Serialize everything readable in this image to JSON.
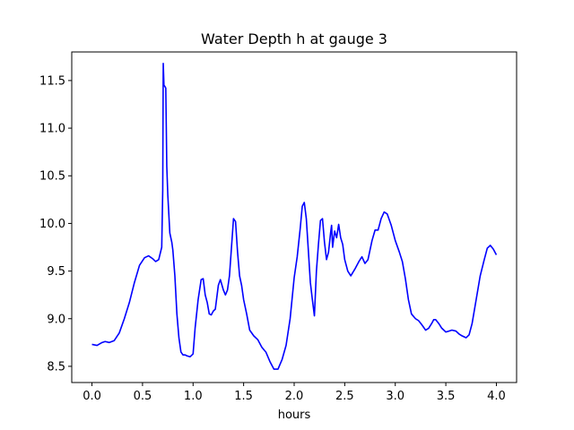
{
  "chart_data": {
    "type": "line",
    "title": "Water Depth h at gauge 3",
    "xlabel": "hours",
    "ylabel": "",
    "xlim": [
      -0.2,
      4.2
    ],
    "ylim": [
      8.33,
      11.8
    ],
    "xticks": [
      0.0,
      0.5,
      1.0,
      1.5,
      2.0,
      2.5,
      3.0,
      3.5,
      4.0
    ],
    "xtick_labels": [
      "0.0",
      "0.5",
      "1.0",
      "1.5",
      "2.0",
      "2.5",
      "3.0",
      "3.5",
      "4.0"
    ],
    "yticks": [
      8.5,
      9.0,
      9.5,
      10.0,
      10.5,
      11.0,
      11.5
    ],
    "ytick_labels": [
      "8.5",
      "9.0",
      "9.5",
      "10.0",
      "10.5",
      "11.0",
      "11.5"
    ],
    "grid": false,
    "series": [
      {
        "color": "#0000ff",
        "x": [
          0.0,
          0.05,
          0.1,
          0.13,
          0.17,
          0.22,
          0.27,
          0.32,
          0.37,
          0.42,
          0.47,
          0.52,
          0.56,
          0.6,
          0.63,
          0.66,
          0.69,
          0.7,
          0.705,
          0.712,
          0.72,
          0.73,
          0.74,
          0.75,
          0.77,
          0.79,
          0.8,
          0.82,
          0.84,
          0.86,
          0.88,
          0.9,
          0.92,
          0.94,
          0.97,
          1.0,
          1.02,
          1.05,
          1.08,
          1.1,
          1.12,
          1.14,
          1.16,
          1.18,
          1.2,
          1.22,
          1.25,
          1.27,
          1.3,
          1.32,
          1.34,
          1.36,
          1.38,
          1.4,
          1.42,
          1.44,
          1.46,
          1.48,
          1.5,
          1.53,
          1.56,
          1.6,
          1.64,
          1.68,
          1.72,
          1.76,
          1.8,
          1.84,
          1.88,
          1.92,
          1.96,
          2.0,
          2.03,
          2.06,
          2.08,
          2.1,
          2.12,
          2.14,
          2.16,
          2.18,
          2.2,
          2.22,
          2.24,
          2.26,
          2.28,
          2.3,
          2.32,
          2.34,
          2.36,
          2.37,
          2.38,
          2.4,
          2.42,
          2.44,
          2.46,
          2.48,
          2.5,
          2.53,
          2.56,
          2.6,
          2.64,
          2.67,
          2.7,
          2.73,
          2.77,
          2.8,
          2.83,
          2.86,
          2.89,
          2.92,
          2.96,
          3.0,
          3.04,
          3.07,
          3.1,
          3.13,
          3.16,
          3.2,
          3.23,
          3.26,
          3.3,
          3.33,
          3.36,
          3.38,
          3.4,
          3.43,
          3.46,
          3.5,
          3.53,
          3.56,
          3.6,
          3.63,
          3.66,
          3.7,
          3.73,
          3.76,
          3.8,
          3.84,
          3.88,
          3.91,
          3.94,
          3.97,
          4.0
        ],
        "y": [
          8.73,
          8.72,
          8.75,
          8.76,
          8.75,
          8.77,
          8.85,
          9.0,
          9.17,
          9.38,
          9.56,
          9.64,
          9.66,
          9.63,
          9.6,
          9.62,
          9.75,
          10.35,
          11.68,
          11.45,
          11.44,
          11.42,
          10.6,
          10.3,
          9.9,
          9.8,
          9.72,
          9.45,
          9.05,
          8.8,
          8.65,
          8.62,
          8.62,
          8.61,
          8.6,
          8.63,
          8.9,
          9.2,
          9.41,
          9.42,
          9.25,
          9.17,
          9.05,
          9.04,
          9.08,
          9.1,
          9.35,
          9.41,
          9.3,
          9.25,
          9.3,
          9.45,
          9.75,
          10.05,
          10.02,
          9.7,
          9.45,
          9.35,
          9.2,
          9.05,
          8.88,
          8.82,
          8.78,
          8.7,
          8.65,
          8.55,
          8.47,
          8.47,
          8.57,
          8.72,
          9.0,
          9.43,
          9.65,
          9.95,
          10.18,
          10.22,
          10.05,
          9.72,
          9.38,
          9.2,
          9.03,
          9.5,
          9.78,
          10.03,
          10.05,
          9.8,
          9.62,
          9.7,
          9.9,
          9.98,
          9.75,
          9.92,
          9.85,
          9.99,
          9.85,
          9.78,
          9.62,
          9.5,
          9.45,
          9.52,
          9.6,
          9.65,
          9.58,
          9.62,
          9.82,
          9.93,
          9.93,
          10.05,
          10.12,
          10.1,
          9.98,
          9.82,
          9.7,
          9.6,
          9.42,
          9.2,
          9.05,
          9.0,
          8.98,
          8.94,
          8.88,
          8.9,
          8.95,
          8.99,
          8.99,
          8.95,
          8.9,
          8.86,
          8.87,
          8.88,
          8.87,
          8.84,
          8.82,
          8.8,
          8.83,
          8.95,
          9.2,
          9.45,
          9.62,
          9.74,
          9.77,
          9.73,
          9.67
        ]
      }
    ]
  }
}
